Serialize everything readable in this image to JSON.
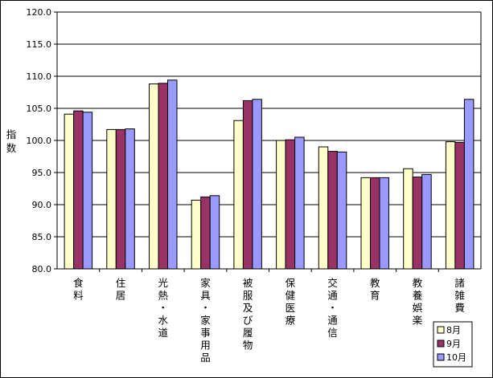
{
  "chart_data": {
    "type": "bar",
    "ylabel": "指数",
    "ylim": [
      80,
      120
    ],
    "ytick_step": 5,
    "ytick_labels": [
      "80.0",
      "85.0",
      "90.0",
      "95.0",
      "100.0",
      "105.0",
      "110.0",
      "115.0",
      "120.0"
    ],
    "grid": true,
    "legend_position": "bottom-right",
    "categories": [
      "食料",
      "住居",
      "光熱・水道",
      "家具・家事用品",
      "被服及び履物",
      "保健医療",
      "交通・通信",
      "教育",
      "教養娯楽",
      "諸雑費"
    ],
    "series": [
      {
        "name": "8月",
        "color": "#ffffcc",
        "values": [
          104.1,
          101.7,
          108.8,
          90.7,
          103.1,
          100.0,
          99.0,
          94.2,
          95.6,
          99.8
        ]
      },
      {
        "name": "9月",
        "color": "#993366",
        "values": [
          104.6,
          101.7,
          108.9,
          91.2,
          106.2,
          100.1,
          98.3,
          94.2,
          94.3,
          99.7
        ]
      },
      {
        "name": "10月",
        "color": "#9999ff",
        "values": [
          104.4,
          101.8,
          109.4,
          91.4,
          106.4,
          100.5,
          98.2,
          94.2,
          94.7,
          106.4
        ]
      }
    ]
  }
}
